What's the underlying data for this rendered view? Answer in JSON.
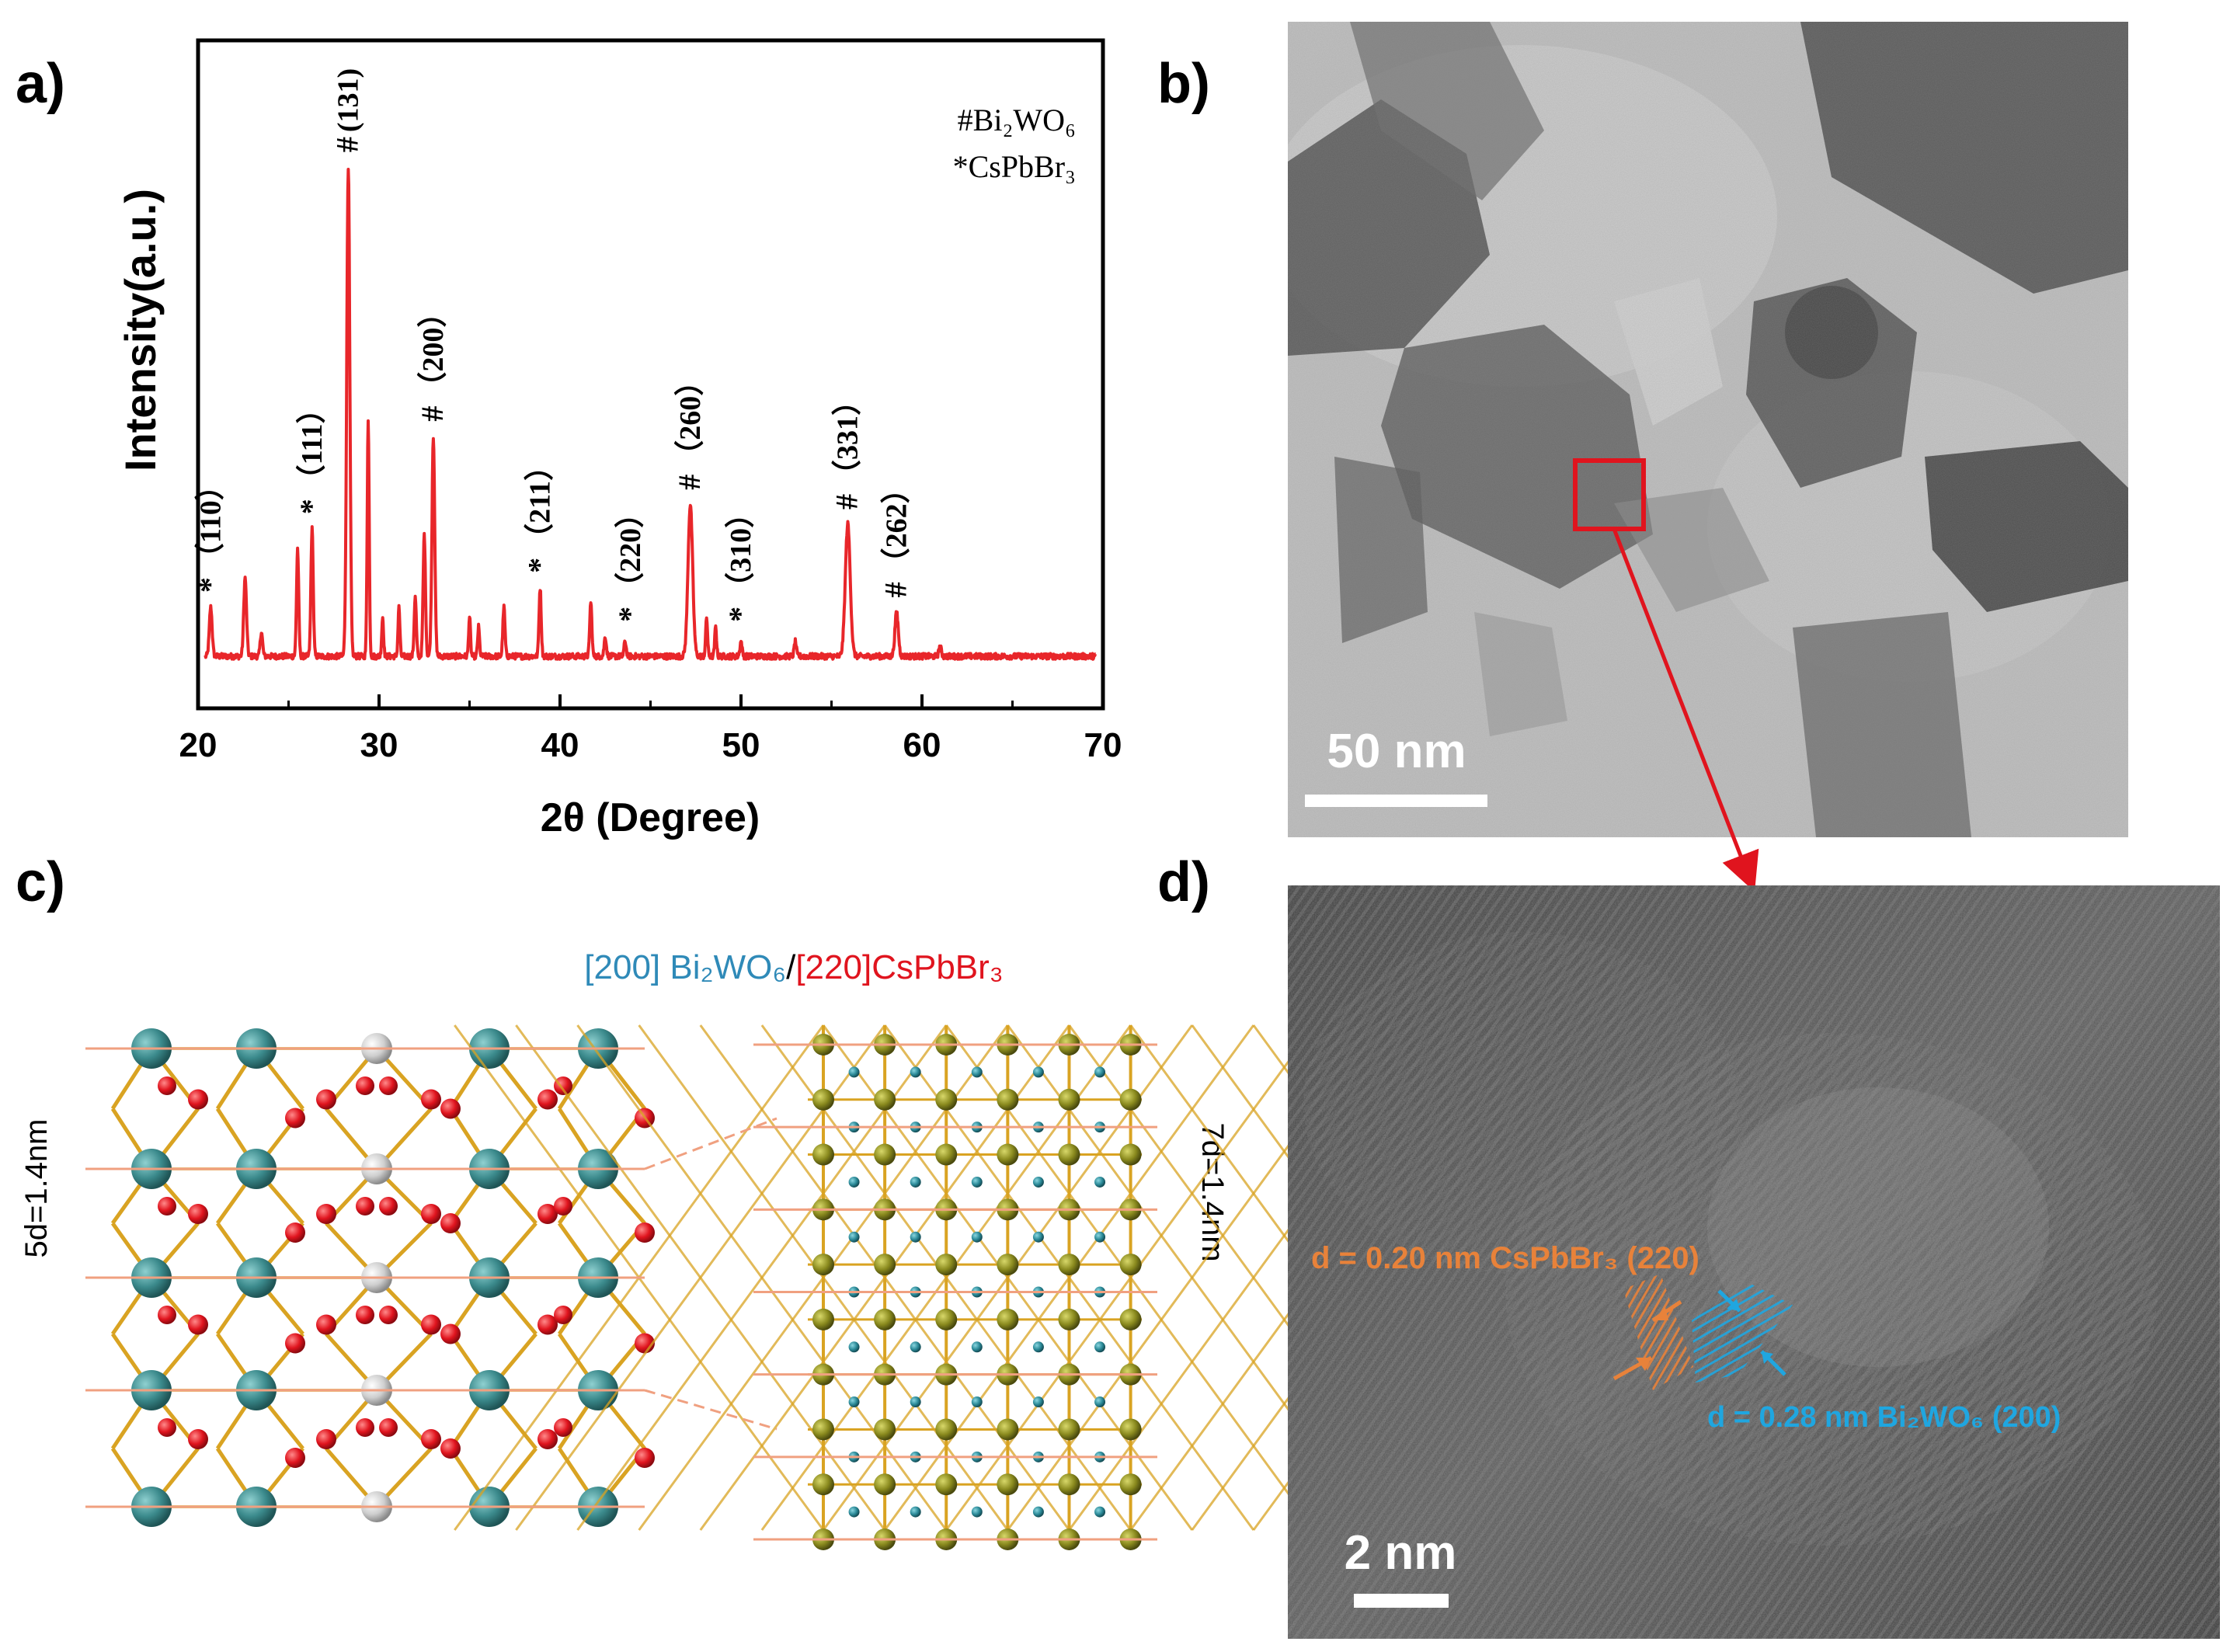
{
  "panels": {
    "a": "a)",
    "b": "b)",
    "c": "c)",
    "d": "d)"
  },
  "chart_data": {
    "type": "line",
    "xlabel": "2θ (Degree)",
    "ylabel": "Intensity(a.u.)",
    "xlim": [
      20,
      70
    ],
    "xticks": [
      20,
      30,
      40,
      50,
      60,
      70
    ],
    "legend": [
      "#Bi₂WO₆",
      "*CsPbBr₃"
    ],
    "legend_placement": "top-right",
    "series_color": "#e8262a",
    "baseline": 0.06,
    "peaks": [
      {
        "x": 20.7,
        "y": 0.1,
        "w": 0.18
      },
      {
        "x": 22.6,
        "y": 0.16,
        "w": 0.18
      },
      {
        "x": 23.5,
        "y": 0.05,
        "w": 0.15
      },
      {
        "x": 25.5,
        "y": 0.22,
        "w": 0.14
      },
      {
        "x": 26.3,
        "y": 0.26,
        "w": 0.15
      },
      {
        "x": 28.3,
        "y": 1.0,
        "w": 0.2
      },
      {
        "x": 29.4,
        "y": 0.48,
        "w": 0.13
      },
      {
        "x": 30.2,
        "y": 0.08,
        "w": 0.12
      },
      {
        "x": 31.1,
        "y": 0.1,
        "w": 0.12
      },
      {
        "x": 32.0,
        "y": 0.12,
        "w": 0.14
      },
      {
        "x": 32.5,
        "y": 0.25,
        "w": 0.15
      },
      {
        "x": 33.0,
        "y": 0.45,
        "w": 0.18
      },
      {
        "x": 35.0,
        "y": 0.08,
        "w": 0.12
      },
      {
        "x": 35.5,
        "y": 0.06,
        "w": 0.12
      },
      {
        "x": 36.9,
        "y": 0.1,
        "w": 0.14
      },
      {
        "x": 38.9,
        "y": 0.14,
        "w": 0.14
      },
      {
        "x": 41.7,
        "y": 0.11,
        "w": 0.14
      },
      {
        "x": 42.5,
        "y": 0.04,
        "w": 0.14
      },
      {
        "x": 43.6,
        "y": 0.03,
        "w": 0.14
      },
      {
        "x": 47.2,
        "y": 0.31,
        "w": 0.3
      },
      {
        "x": 48.1,
        "y": 0.08,
        "w": 0.12
      },
      {
        "x": 48.6,
        "y": 0.06,
        "w": 0.12
      },
      {
        "x": 50.0,
        "y": 0.03,
        "w": 0.14
      },
      {
        "x": 53.0,
        "y": 0.03,
        "w": 0.14
      },
      {
        "x": 55.9,
        "y": 0.27,
        "w": 0.32
      },
      {
        "x": 58.6,
        "y": 0.09,
        "w": 0.22
      },
      {
        "x": 61.0,
        "y": 0.02,
        "w": 0.16
      }
    ],
    "annotations": [
      {
        "x": 20.7,
        "y": 0.13,
        "marker": "*",
        "label": "（110）"
      },
      {
        "x": 26.3,
        "y": 0.29,
        "marker": "*",
        "label": "（111）"
      },
      {
        "x": 28.3,
        "y": 1.03,
        "marker": "#",
        "label": "(131)"
      },
      {
        "x": 33.0,
        "y": 0.48,
        "marker": "#",
        "label": "（200）"
      },
      {
        "x": 38.9,
        "y": 0.17,
        "marker": "*",
        "label": "（211）"
      },
      {
        "x": 43.9,
        "y": 0.07,
        "marker": "*",
        "label": "（220）"
      },
      {
        "x": 47.2,
        "y": 0.34,
        "marker": "#",
        "label": "（260）"
      },
      {
        "x": 50.0,
        "y": 0.07,
        "marker": "*",
        "label": "（310）"
      },
      {
        "x": 55.9,
        "y": 0.3,
        "marker": "#",
        "label": "（331）"
      },
      {
        "x": 58.6,
        "y": 0.12,
        "marker": "#",
        "label": "（262）"
      }
    ]
  },
  "panel_b": {
    "scale_label": "50 nm"
  },
  "panel_c": {
    "title_left": "[200] Bi₂WO₆",
    "title_sep": "/",
    "title_right": "[220]CsPbBr₃",
    "left_label": "5d=1.4nm",
    "right_label": "7d=1.4nm",
    "colors": {
      "bi": "#3b8a8c",
      "o": "#e0141e",
      "w": "#cfcfcf",
      "bond": "#d9a322",
      "pb": "#8a8a1e",
      "cs": "#2b8a98",
      "line": "#f0a080"
    }
  },
  "panel_d": {
    "scale_label": "2 nm",
    "label_orange": "d = 0.20 nm CsPbBr₃ (220)",
    "label_blue": "d = 0.28 nm Bi₂WO₆ (200)",
    "colors": {
      "orange": "#e8823a",
      "blue": "#1fa6e0"
    }
  }
}
